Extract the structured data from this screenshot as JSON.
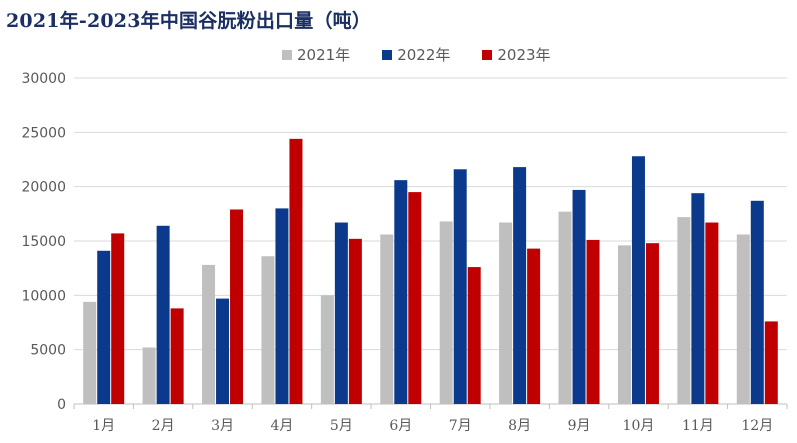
{
  "chart_data": {
    "type": "bar",
    "title": "2021年-2023年中国谷朊粉出口量（吨）",
    "categories": [
      "1月",
      "2月",
      "3月",
      "4月",
      "5月",
      "6月",
      "7月",
      "8月",
      "9月",
      "10月",
      "11月",
      "12月"
    ],
    "series": [
      {
        "name": "2021年",
        "color": "#bfbfbf",
        "values": [
          9400,
          5200,
          12800,
          13600,
          10000,
          15600,
          16800,
          16700,
          17700,
          14600,
          17200,
          15600
        ]
      },
      {
        "name": "2022年",
        "color": "#0b3a8c",
        "values": [
          14100,
          16400,
          9700,
          18000,
          16700,
          20600,
          21600,
          21800,
          19700,
          22800,
          19400,
          18700
        ]
      },
      {
        "name": "2023年",
        "color": "#c00000",
        "values": [
          15700,
          8800,
          17900,
          24400,
          15200,
          19500,
          12600,
          14300,
          15100,
          14800,
          16700,
          7600
        ]
      }
    ],
    "yticks": [
      "0",
      "5000",
      "10000",
      "15000",
      "20000",
      "25000",
      "30000"
    ],
    "ylim": [
      0,
      30000
    ],
    "grid": true,
    "legend": "top-center"
  }
}
